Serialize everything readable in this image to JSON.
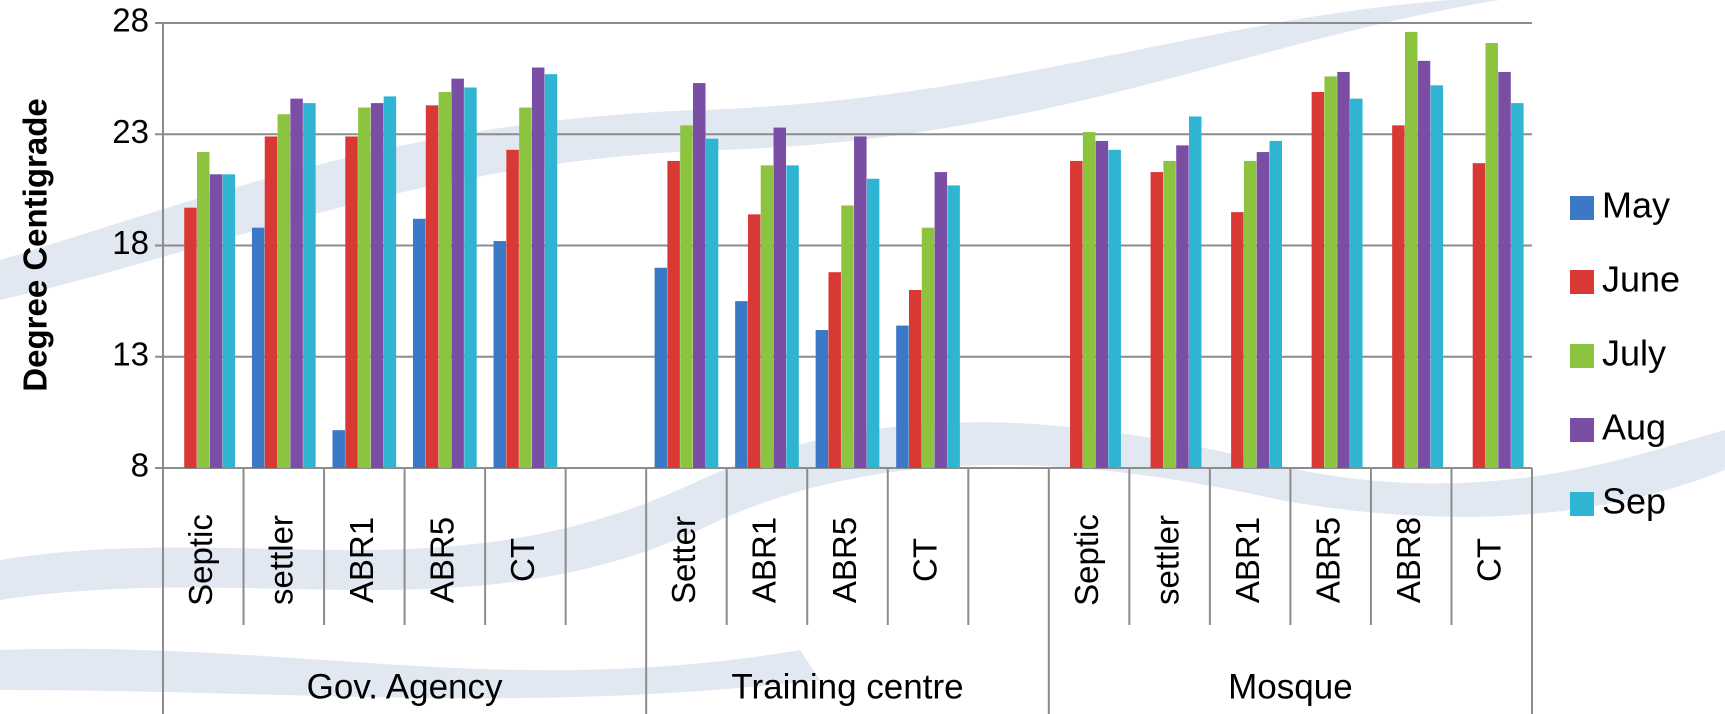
{
  "chart_data": {
    "type": "bar",
    "y_label": "Degree Centigrade",
    "ylim": [
      8,
      28
    ],
    "yticks": [
      8,
      13,
      18,
      23,
      28
    ],
    "grid": true,
    "legend": "right",
    "groups": [
      {
        "name": "Gov. Agency",
        "categories": [
          "Septic",
          "settler",
          "ABR1",
          "ABR5",
          "CT",
          null
        ]
      },
      {
        "name": "Training centre",
        "categories": [
          "Setter",
          "ABR1",
          "ABR5",
          "CT",
          null
        ]
      },
      {
        "name": "Mosque",
        "categories": [
          "Septic",
          "settler",
          "ABR1",
          "ABR5",
          "ABR8",
          "CT"
        ]
      }
    ],
    "series": [
      {
        "name": "May",
        "color": "#3b78c8",
        "values": [
          null,
          18.8,
          9.7,
          19.2,
          18.2,
          null,
          17.0,
          15.5,
          14.2,
          14.4,
          null,
          null,
          null,
          null,
          null,
          null,
          null
        ]
      },
      {
        "name": "June",
        "color": "#d93934",
        "values": [
          19.7,
          22.9,
          22.9,
          24.3,
          22.3,
          null,
          21.8,
          19.4,
          16.8,
          16.0,
          null,
          21.8,
          21.3,
          19.5,
          24.9,
          23.4,
          21.7
        ]
      },
      {
        "name": "July",
        "color": "#8cc43f",
        "values": [
          22.2,
          23.9,
          24.2,
          24.9,
          24.2,
          null,
          23.4,
          21.6,
          19.8,
          18.8,
          null,
          23.1,
          21.8,
          21.8,
          25.6,
          27.6,
          27.1
        ]
      },
      {
        "name": "Aug",
        "color": "#7a4ea5",
        "values": [
          21.2,
          24.6,
          24.4,
          25.5,
          26.0,
          null,
          25.3,
          23.3,
          22.9,
          21.3,
          null,
          22.7,
          22.5,
          22.2,
          25.8,
          26.3,
          25.8
        ]
      },
      {
        "name": "Sep",
        "color": "#2fb4d1",
        "values": [
          21.2,
          24.4,
          24.7,
          25.1,
          25.7,
          null,
          22.8,
          21.6,
          21.0,
          20.7,
          null,
          22.3,
          23.8,
          22.7,
          24.6,
          25.2,
          24.4
        ]
      }
    ]
  }
}
